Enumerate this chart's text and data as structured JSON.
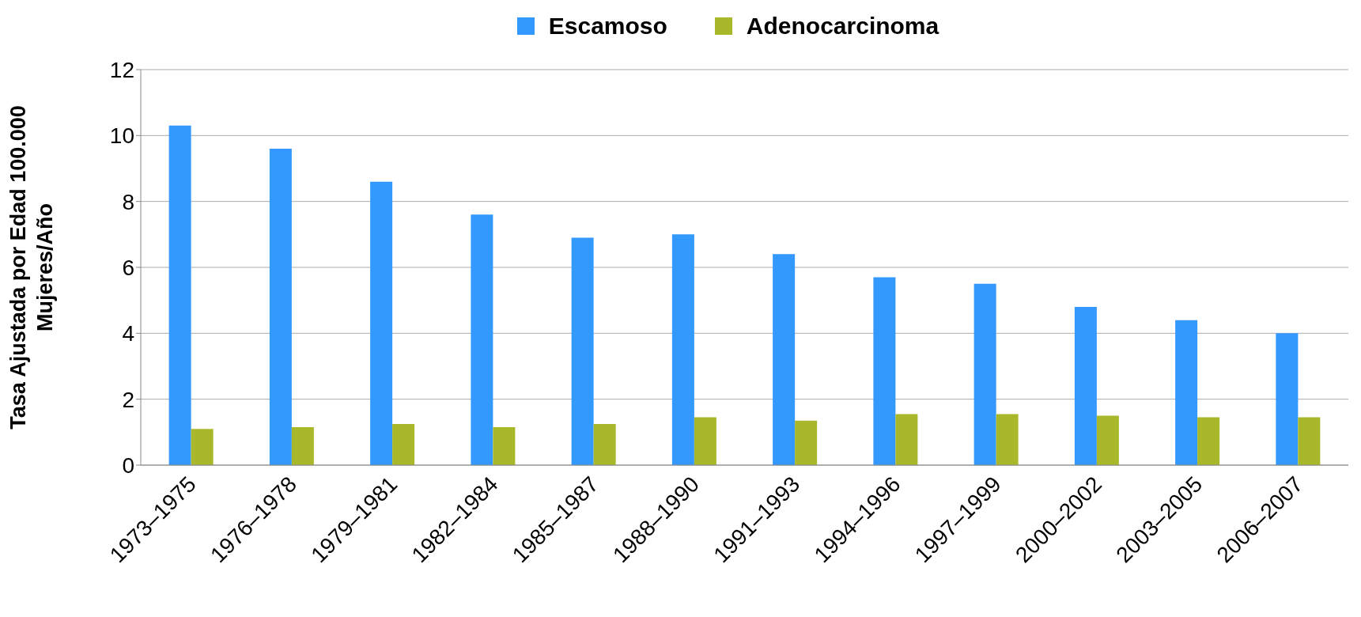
{
  "chart_data": {
    "type": "bar",
    "ylabel": "Tasa Ajustada por Edad 100.000\nMujeres/Año",
    "categories": [
      "1973–1975",
      "1976–1978",
      "1979–1981",
      "1982–1984",
      "1985–1987",
      "1988–1990",
      "1991–1993",
      "1994–1996",
      "1997–1999",
      "2000–2002",
      "2003–2005",
      "2006–2007"
    ],
    "series": [
      {
        "name": "Escamoso",
        "color": "#3399ff",
        "values": [
          10.3,
          9.6,
          8.6,
          7.6,
          6.9,
          7.0,
          6.4,
          5.7,
          5.5,
          4.8,
          4.4,
          4.0
        ]
      },
      {
        "name": "Adenocarcinoma",
        "color": "#a8b82a",
        "values": [
          1.1,
          1.15,
          1.25,
          1.15,
          1.25,
          1.45,
          1.35,
          1.55,
          1.55,
          1.5,
          1.45,
          1.45
        ]
      }
    ],
    "ylim": [
      0,
      12
    ],
    "yticks": [
      0,
      2,
      4,
      6,
      8,
      10,
      12
    ],
    "grid": "y",
    "legend": "top"
  }
}
